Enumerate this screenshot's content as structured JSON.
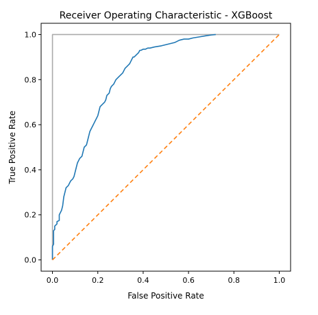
{
  "chart_data": {
    "type": "line",
    "title": "Receiver Operating Characteristic - XGBoost",
    "xlabel": "False Positive Rate",
    "ylabel": "True Positive Rate",
    "xlim": [
      -0.05,
      1.05
    ],
    "ylim": [
      -0.05,
      1.05
    ],
    "grid": false,
    "xticks": [
      "0.0",
      "0.2",
      "0.4",
      "0.6",
      "0.8",
      "1.0"
    ],
    "yticks": [
      "0.0",
      "0.2",
      "0.4",
      "0.6",
      "0.8",
      "1.0"
    ],
    "series": [
      {
        "color": "#aaaaaa",
        "style": "solid",
        "x": [
          0,
          0,
          1
        ],
        "y": [
          0,
          1,
          1
        ]
      },
      {
        "color": "#1f77b4",
        "style": "solid",
        "x": [
          0.0,
          0.0,
          0.005,
          0.005,
          0.01,
          0.01,
          0.02,
          0.02,
          0.03,
          0.03,
          0.04,
          0.045,
          0.05,
          0.055,
          0.06,
          0.07,
          0.075,
          0.08,
          0.09,
          0.095,
          0.1,
          0.105,
          0.11,
          0.115,
          0.12,
          0.13,
          0.135,
          0.14,
          0.15,
          0.155,
          0.16,
          0.165,
          0.17,
          0.18,
          0.185,
          0.19,
          0.2,
          0.205,
          0.21,
          0.22,
          0.23,
          0.235,
          0.24,
          0.25,
          0.255,
          0.26,
          0.27,
          0.275,
          0.28,
          0.29,
          0.3,
          0.31,
          0.32,
          0.33,
          0.34,
          0.345,
          0.35,
          0.355,
          0.36,
          0.37,
          0.38,
          0.385,
          0.39,
          0.4,
          0.41,
          0.42,
          0.43,
          0.45,
          0.48,
          0.5,
          0.52,
          0.54,
          0.55,
          0.56,
          0.58,
          0.6,
          0.62,
          0.65,
          0.68,
          0.7,
          0.72
        ],
        "y": [
          0.0,
          0.06,
          0.07,
          0.13,
          0.135,
          0.15,
          0.16,
          0.17,
          0.175,
          0.2,
          0.22,
          0.24,
          0.28,
          0.3,
          0.32,
          0.33,
          0.34,
          0.35,
          0.36,
          0.37,
          0.39,
          0.41,
          0.43,
          0.44,
          0.45,
          0.46,
          0.48,
          0.5,
          0.51,
          0.53,
          0.55,
          0.57,
          0.58,
          0.6,
          0.61,
          0.62,
          0.64,
          0.66,
          0.68,
          0.69,
          0.7,
          0.71,
          0.73,
          0.74,
          0.76,
          0.77,
          0.78,
          0.79,
          0.8,
          0.81,
          0.82,
          0.83,
          0.85,
          0.86,
          0.87,
          0.88,
          0.89,
          0.9,
          0.9,
          0.91,
          0.92,
          0.93,
          0.93,
          0.935,
          0.935,
          0.94,
          0.94,
          0.945,
          0.95,
          0.955,
          0.96,
          0.965,
          0.97,
          0.975,
          0.98,
          0.98,
          0.985,
          0.99,
          0.995,
          0.998,
          1.0
        ]
      },
      {
        "color": "#ff7f0e",
        "style": "dashed",
        "x": [
          0,
          1
        ],
        "y": [
          0,
          1
        ]
      }
    ]
  }
}
